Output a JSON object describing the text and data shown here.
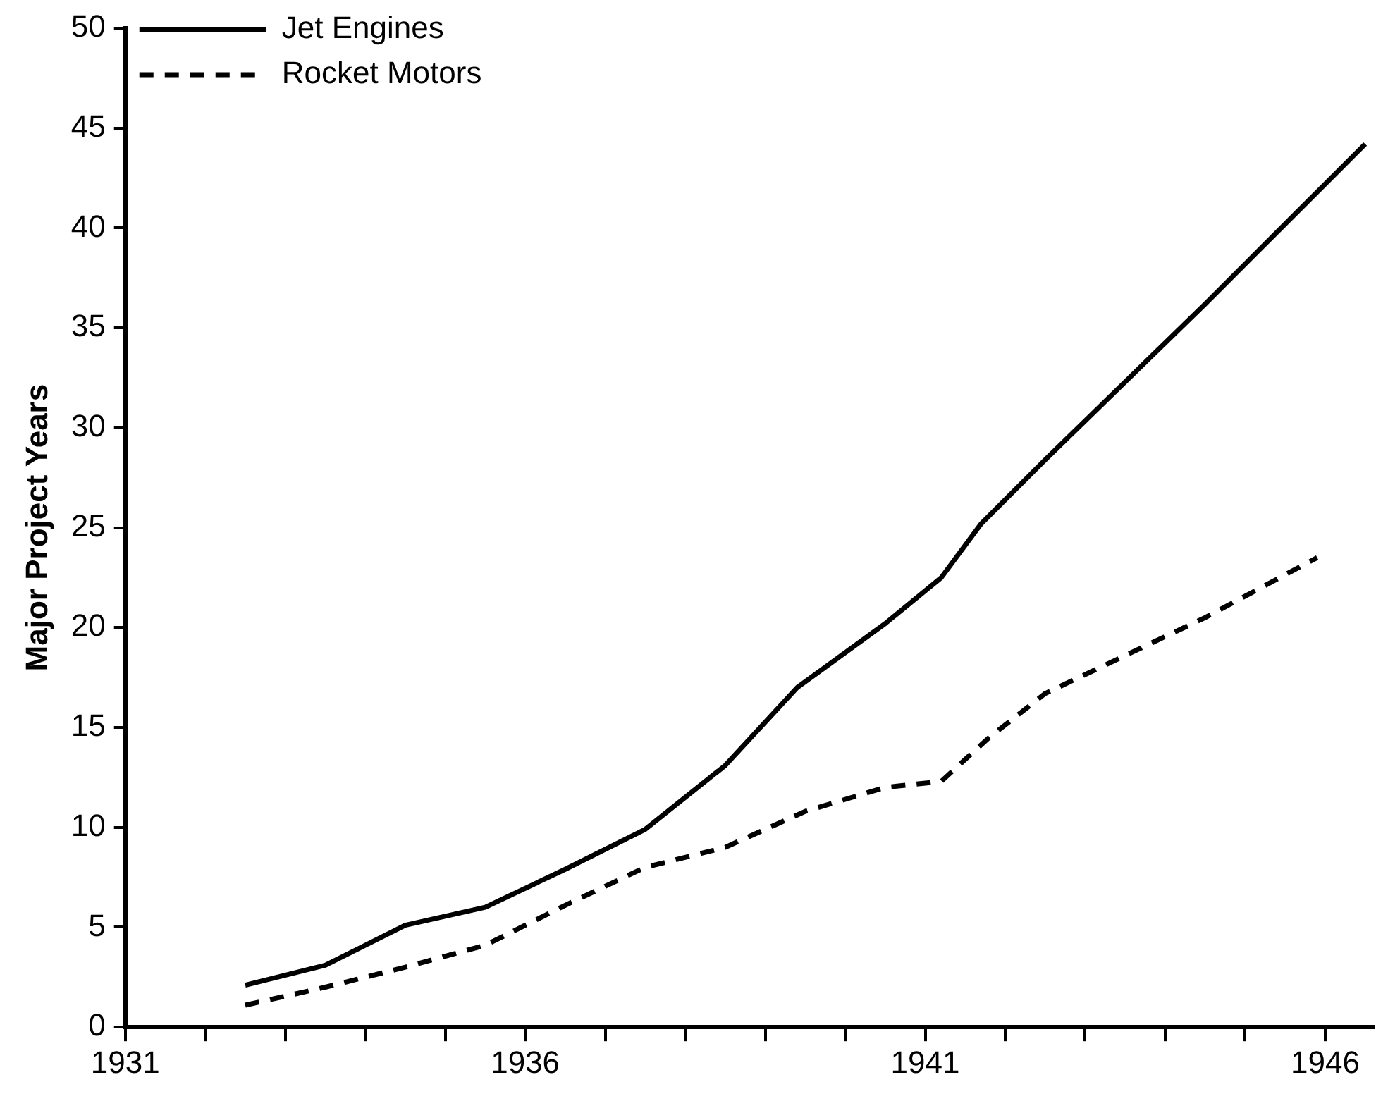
{
  "chart_data": {
    "type": "line",
    "ylabel": "Major Project Years",
    "xlim": [
      1931,
      1946.6
    ],
    "xticks": [
      1931,
      {
        "value": 1932,
        "label": null
      },
      {
        "value": 1933,
        "label": null
      },
      {
        "value": 1934,
        "label": null
      },
      {
        "value": 1935,
        "label": null
      },
      1936,
      {
        "value": 1937,
        "label": null
      },
      {
        "value": 1938,
        "label": null
      },
      {
        "value": 1939,
        "label": null
      },
      {
        "value": 1940,
        "label": null
      },
      1941,
      {
        "value": 1942,
        "label": null
      },
      {
        "value": 1943,
        "label": null
      },
      {
        "value": 1944,
        "label": null
      },
      {
        "value": 1945,
        "label": null
      },
      1946
    ],
    "ylim": [
      0,
      50
    ],
    "yticks": [
      0,
      5,
      10,
      15,
      20,
      25,
      30,
      35,
      40,
      45,
      50
    ],
    "grid": false,
    "legend": "top left",
    "marker": "none",
    "series": [
      {
        "name": "Jet Engines",
        "color": "#000000",
        "line_style": "solid",
        "x": [
          1932.5,
          1933.5,
          1934.5,
          1935.5,
          1936.5,
          1937.5,
          1938.5,
          1939.4,
          1940.5,
          1941.2,
          1941.7,
          1942.5,
          1943.5,
          1944.5,
          1945.5,
          1946.5
        ],
        "values": [
          2.1,
          3.1,
          5.1,
          6,
          7.9,
          9.9,
          13.1,
          17,
          20.2,
          22.5,
          25.2,
          28.4,
          32.3,
          36.2,
          40.2,
          44.2
        ]
      },
      {
        "name": "Rocket Motors",
        "color": "#000000",
        "line_style": "dashed",
        "x": [
          1932.5,
          1933.5,
          1934.5,
          1935.5,
          1936.5,
          1937.5,
          1938.5,
          1939.5,
          1940.5,
          1941.2,
          1941.8,
          1942.5,
          1943.5,
          1944.5,
          1945.9
        ],
        "values": [
          1.1,
          2,
          3,
          4.1,
          6.1,
          8,
          9,
          10.8,
          12,
          12.3,
          14.5,
          16.7,
          18.6,
          20.5,
          23.5
        ]
      }
    ]
  }
}
